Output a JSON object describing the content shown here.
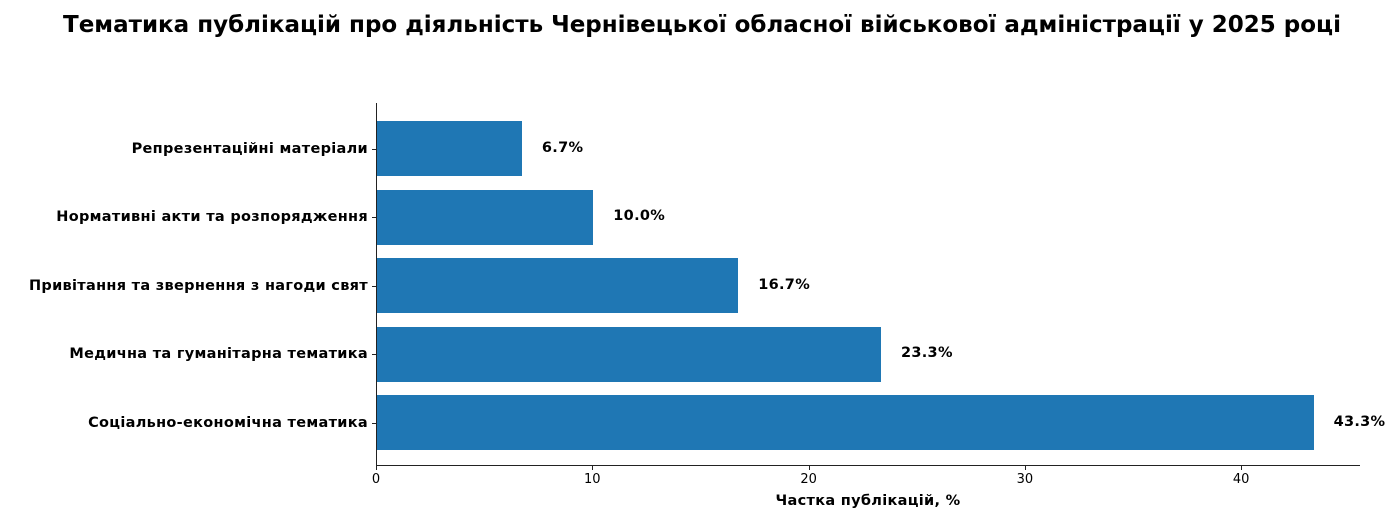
{
  "chart_data": {
    "type": "bar",
    "orientation": "horizontal",
    "title": "Тематика публікацій про діяльність Чернівецької обласної військової адміністрації у 2025 році",
    "xlabel": "Частка публікацій, %",
    "ylabel": "",
    "categories": [
      "Репрезентаційні матеріали",
      "Нормативні акти та розпорядження",
      "Привітання та звернення з нагоди свят",
      "Медична та гуманітарна тематика",
      "Соціально-економічна тематика"
    ],
    "values": [
      6.7,
      10.0,
      16.7,
      23.3,
      43.3
    ],
    "value_labels": [
      "6.7%",
      "10.0%",
      "16.7%",
      "23.3%",
      "43.3%"
    ],
    "xlim": [
      0,
      45.5
    ],
    "xticks": [
      0,
      10,
      20,
      30,
      40
    ],
    "xtick_labels": [
      "0",
      "10",
      "20",
      "30",
      "40"
    ],
    "grid": false,
    "legend": null,
    "bar_color": "#1f77b4"
  }
}
